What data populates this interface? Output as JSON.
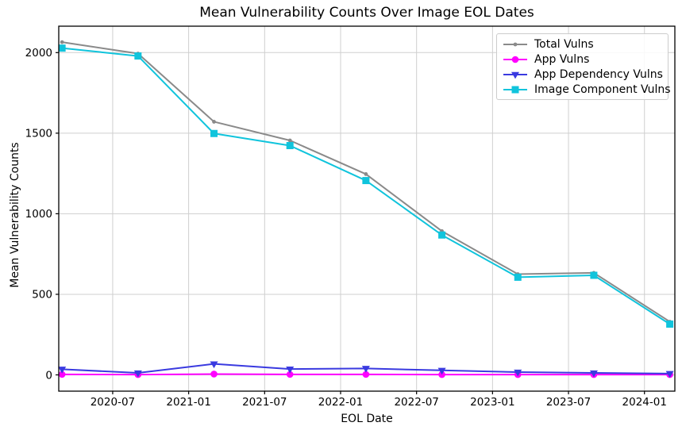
{
  "chart_data": {
    "type": "line",
    "title": "Mean Vulnerability Counts Over Image EOL Dates",
    "xlabel": "EOL Date",
    "ylabel": "Mean Vulnerability Counts",
    "x": [
      "2020-03",
      "2020-09",
      "2021-03",
      "2021-09",
      "2022-03",
      "2022-09",
      "2023-03",
      "2023-09",
      "2024-03"
    ],
    "series": [
      {
        "name": "Total Vulns",
        "color": "#8a8a8a",
        "marker": "circle-small",
        "values": [
          2065,
          1994,
          1571,
          1455,
          1246,
          892,
          625,
          633,
          330
        ]
      },
      {
        "name": "App Vulns",
        "color": "#ff00ff",
        "marker": "circle",
        "values": [
          3,
          2,
          5,
          3,
          3,
          2,
          2,
          2,
          2
        ]
      },
      {
        "name": "App Dependency Vulns",
        "color": "#3a3ae0",
        "marker": "triangle-down",
        "values": [
          35,
          12,
          68,
          36,
          40,
          28,
          17,
          12,
          8
        ]
      },
      {
        "name": "Image Component Vulns",
        "color": "#10c4dc",
        "marker": "square",
        "values": [
          2028,
          1979,
          1498,
          1423,
          1206,
          868,
          606,
          618,
          315
        ]
      }
    ],
    "xticks": [
      "2020-07",
      "2021-01",
      "2021-07",
      "2022-01",
      "2022-07",
      "2023-01",
      "2023-07",
      "2024-01"
    ],
    "yticks": [
      0,
      500,
      1000,
      1500,
      2000
    ],
    "ylim": [
      -101,
      2164
    ],
    "xlim_months_since_2020_01": [
      1.74,
      50.4
    ],
    "grid": true,
    "grid_color": "#cfcfcf",
    "frame_color": "#000000",
    "legend_position": "upper right"
  }
}
